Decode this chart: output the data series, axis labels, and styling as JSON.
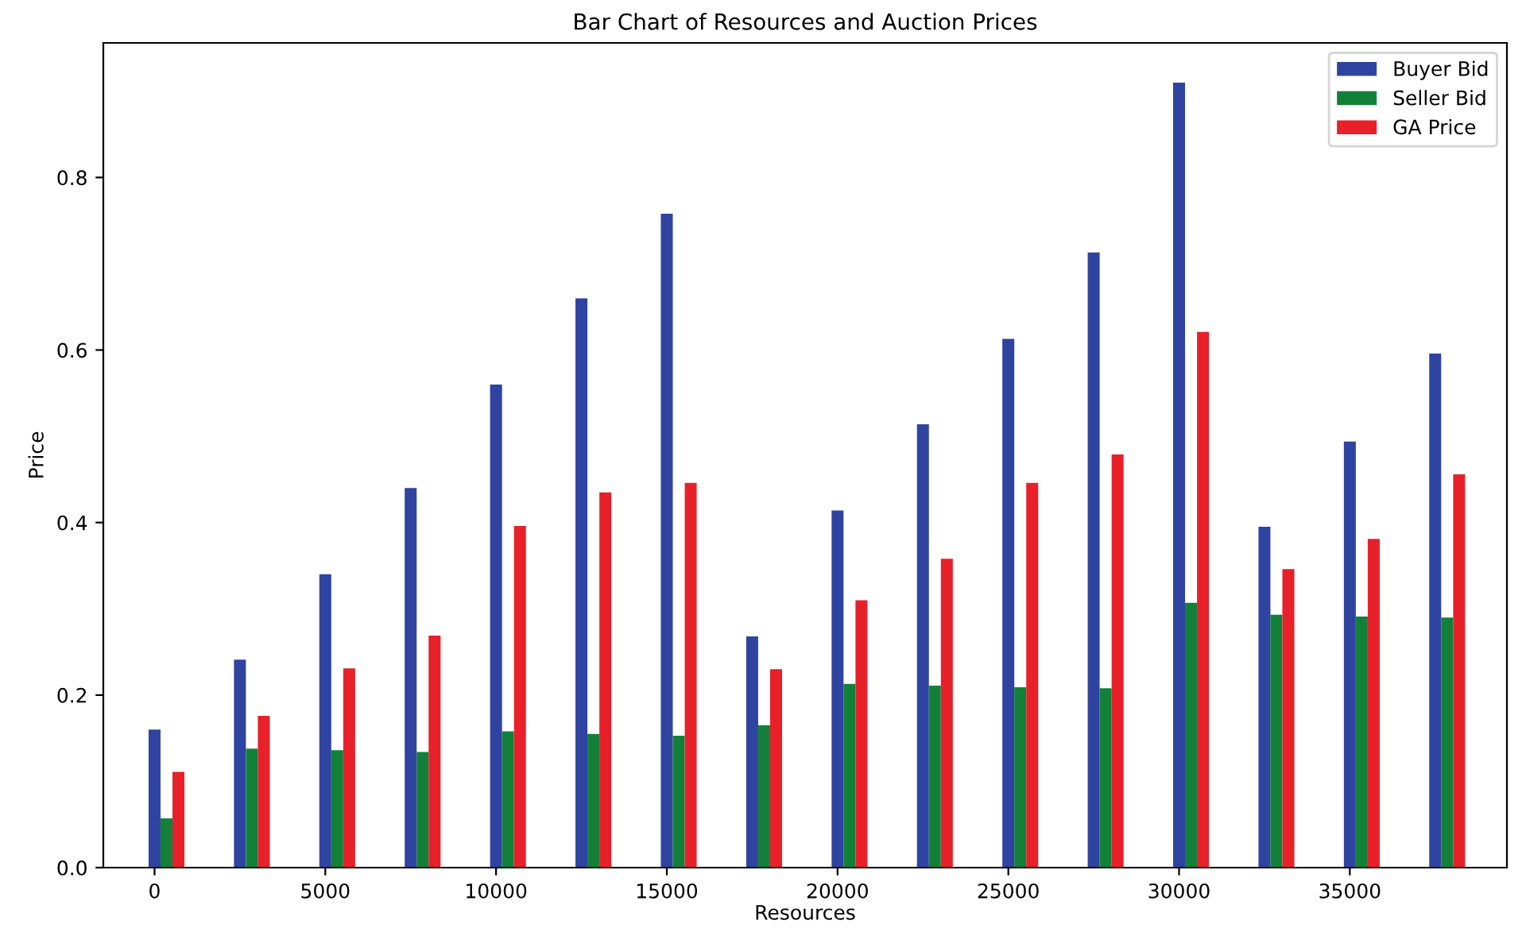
{
  "chart_data": {
    "type": "bar",
    "title": "Bar Chart of Resources and Auction Prices",
    "xlabel": "Resources",
    "ylabel": "Price",
    "x": [
      0,
      2500,
      5000,
      7500,
      10000,
      12500,
      15000,
      17500,
      20000,
      22500,
      25000,
      27500,
      30000,
      32500,
      35000,
      37500
    ],
    "series": [
      {
        "name": "Buyer Bid",
        "color": "#2f44a0",
        "values": [
          0.16,
          0.241,
          0.34,
          0.44,
          0.56,
          0.66,
          0.758,
          0.268,
          0.414,
          0.514,
          0.613,
          0.713,
          0.91,
          0.395,
          0.494,
          0.596
        ]
      },
      {
        "name": "Seller Bid",
        "color": "#13803a",
        "values": [
          0.057,
          0.138,
          0.136,
          0.134,
          0.158,
          0.155,
          0.153,
          0.165,
          0.213,
          0.211,
          0.209,
          0.208,
          0.307,
          0.293,
          0.291,
          0.29
        ]
      },
      {
        "name": "GA Price",
        "color": "#e8202a",
        "values": [
          0.111,
          0.176,
          0.231,
          0.269,
          0.396,
          0.435,
          0.446,
          0.23,
          0.31,
          0.358,
          0.446,
          0.479,
          0.621,
          0.346,
          0.381,
          0.456
        ]
      }
    ],
    "xlim": [
      -1500,
      39600
    ],
    "xticks": [
      0,
      5000,
      10000,
      15000,
      20000,
      25000,
      30000,
      35000
    ],
    "ylim": [
      0,
      0.956
    ],
    "yticks": [
      {
        "value": 0,
        "label": "0.0"
      },
      0.2,
      0.4,
      0.6,
      0.8
    ],
    "grid": false,
    "legend": "top right"
  }
}
